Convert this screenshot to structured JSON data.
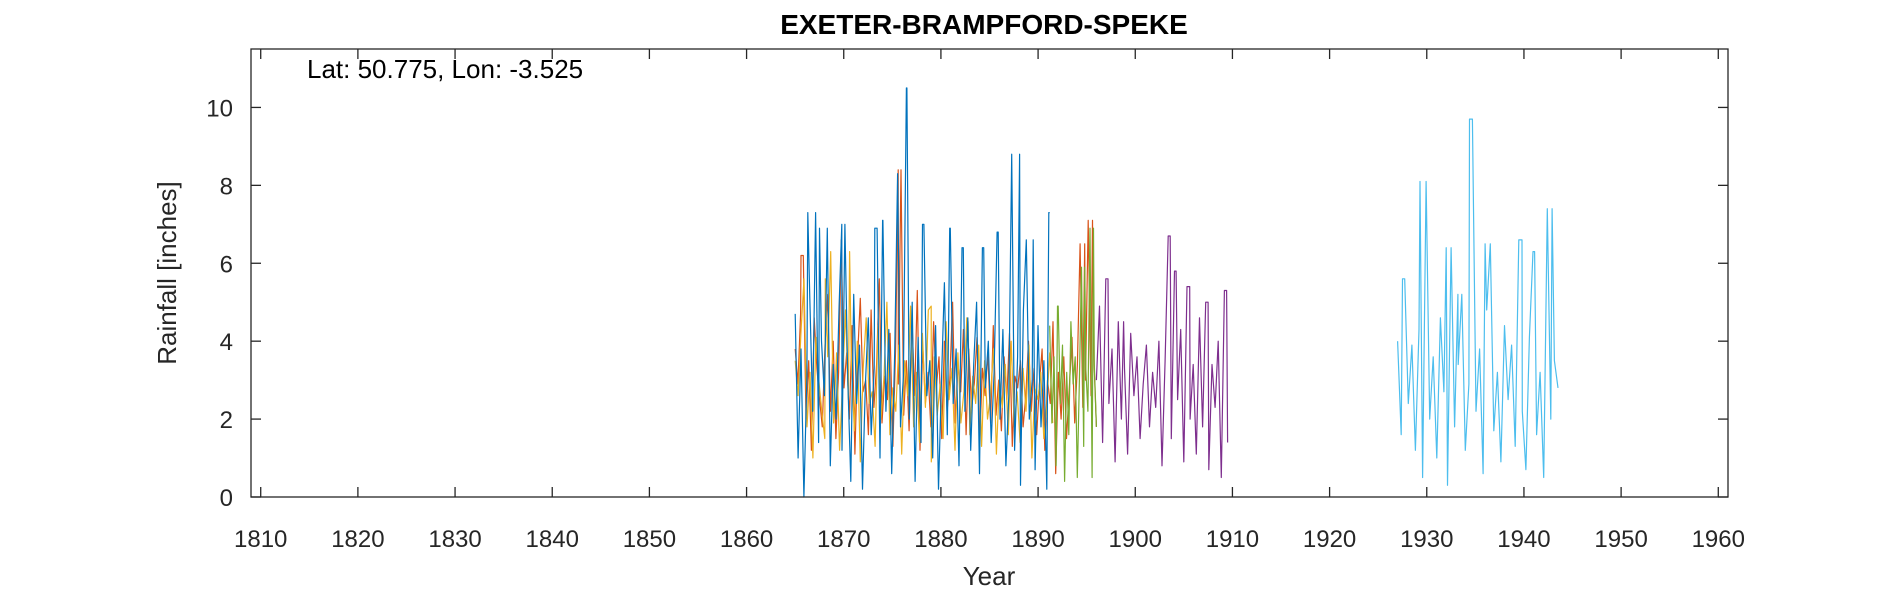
{
  "chart_data": {
    "type": "line",
    "title": "EXETER-BRAMPFORD-SPEKE",
    "xlabel": "Year",
    "ylabel": "Rainfall [inches]",
    "annotation": "Lat: 50.775, Lon: -3.525",
    "xlim": [
      1809,
      1961
    ],
    "ylim": [
      0,
      11.5
    ],
    "xticks": [
      1810,
      1820,
      1830,
      1840,
      1850,
      1860,
      1870,
      1880,
      1890,
      1900,
      1910,
      1920,
      1930,
      1940,
      1950,
      1960
    ],
    "yticks": [
      0,
      2,
      4,
      6,
      8,
      10
    ],
    "grid": false,
    "legend": "none",
    "series": [
      {
        "color": "#d95319",
        "x_start": 1865.0,
        "x_end": 1896.0,
        "peaks": [
          [
            1865.6,
            6.2
          ],
          [
            1875.6,
            8.4
          ],
          [
            1894.8,
            6.5
          ],
          [
            1895.6,
            7.1
          ]
        ],
        "y": [
          3.8,
          2.9,
          4.7,
          6.2,
          2.0,
          3.5,
          1.2,
          4.6,
          3.3,
          2.5,
          1.8,
          3.9,
          5.2,
          2.2,
          4.0,
          1.5,
          3.2,
          6.6,
          2.8,
          3.7,
          2.0,
          4.4,
          1.1,
          3.6,
          5.1,
          2.7,
          3.0,
          1.6,
          4.8,
          2.3,
          3.4,
          5.6,
          1.9,
          3.1,
          2.5,
          4.2,
          1.3,
          3.8,
          2.9,
          8.4,
          2.1,
          3.5,
          1.7,
          4.6,
          2.6,
          5.3,
          1.2,
          3.9,
          2.4,
          3.2,
          1.8,
          4.5,
          2.8,
          3.6,
          1.5,
          4.0,
          2.2,
          3.0,
          5.0,
          1.9,
          3.4,
          2.7,
          4.3,
          1.6,
          3.8,
          2.3,
          2.9,
          4.1,
          1.4,
          3.3,
          2.6,
          3.7,
          1.9,
          4.4,
          2.1,
          3.0,
          1.7,
          3.6,
          2.5,
          4.2,
          1.3,
          3.1,
          2.8,
          3.5,
          1.8,
          2.6,
          4.0,
          2.2,
          3.3,
          1.6,
          2.9,
          3.8,
          1.2,
          3.0,
          2.4,
          4.5,
          0.6,
          3.2,
          2.0,
          3.6,
          1.5,
          2.8,
          4.1,
          1.9,
          3.4,
          6.5,
          2.3,
          3.0,
          7.1,
          2.6,
          3.7,
          1.8
        ]
      },
      {
        "color": "#edb120",
        "x_start": 1865.0,
        "x_end": 1891.5,
        "peaks": [
          [
            1868.1,
            5.6
          ],
          [
            1870.6,
            6.3
          ],
          [
            1879.0,
            4.9
          ],
          [
            1882.8,
            4.5
          ]
        ],
        "y": [
          3.5,
          2.6,
          4.3,
          5.6,
          1.8,
          3.2,
          1.0,
          4.1,
          3.0,
          2.2,
          1.5,
          3.6,
          6.3,
          1.9,
          3.7,
          1.2,
          2.9,
          4.8,
          2.5,
          3.4,
          1.7,
          4.0,
          0.9,
          3.3,
          4.6,
          2.4,
          2.7,
          1.3,
          4.4,
          2.0,
          3.1,
          5.0,
          1.6,
          2.8,
          2.2,
          3.9,
          1.1,
          3.5,
          2.6,
          4.9,
          1.8,
          3.2,
          1.4,
          4.2,
          2.3,
          4.8,
          0.9,
          3.6,
          2.1,
          2.9,
          1.5,
          4.5,
          2.5,
          3.3,
          1.2,
          3.7,
          1.9,
          2.7,
          4.6,
          1.6,
          3.1,
          2.4,
          3.9,
          1.3,
          3.5,
          2.0,
          2.6,
          3.8,
          1.1,
          3.0,
          2.3,
          3.4,
          1.6,
          4.0,
          1.8,
          2.7,
          1.4,
          3.3,
          2.2,
          3.9,
          1.0,
          2.8,
          2.5,
          3.2,
          1.5,
          2.3,
          3.7,
          1.9
        ]
      },
      {
        "color": "#0072bd",
        "x_start": 1865.0,
        "x_end": 1891.2,
        "peaks": [
          [
            1866.3,
            7.3
          ],
          [
            1867.5,
            6.9
          ],
          [
            1869.8,
            7.0
          ],
          [
            1873.2,
            6.9
          ],
          [
            1874.0,
            7.1
          ],
          [
            1876.5,
            10.5
          ],
          [
            1878.1,
            7.0
          ],
          [
            1880.9,
            6.9
          ],
          [
            1882.3,
            6.4
          ],
          [
            1884.4,
            6.4
          ],
          [
            1885.9,
            6.8
          ],
          [
            1888.1,
            8.8
          ],
          [
            1889.5,
            6.6
          ],
          [
            1891.1,
            7.3
          ]
        ],
        "y": [
          4.7,
          1.0,
          3.8,
          0.0,
          3.1,
          5.1,
          2.2,
          7.3,
          1.4,
          4.0,
          2.6,
          6.9,
          0.8,
          3.4,
          2.0,
          4.9,
          1.2,
          7.0,
          3.0,
          0.4,
          5.2,
          2.4,
          3.9,
          0.2,
          2.9,
          4.6,
          1.6,
          3.3,
          6.9,
          1.0,
          7.1,
          2.2,
          4.3,
          0.6,
          3.7,
          8.3,
          1.8,
          3.1,
          10.5,
          2.0,
          5.0,
          0.4,
          4.1,
          1.4,
          7.0,
          2.6,
          3.5,
          1.0,
          4.4,
          0.2,
          3.0,
          5.5,
          1.6,
          6.9,
          2.4,
          3.8,
          0.8,
          6.4,
          2.2,
          4.6,
          1.2,
          3.4,
          5.0,
          0.6,
          6.4,
          2.8,
          4.0,
          1.4,
          3.2,
          6.8,
          2.0,
          4.3,
          0.8,
          2.6,
          8.8,
          1.2,
          3.6,
          0.3,
          4.8,
          6.6,
          2.0,
          3.0,
          0.7,
          4.4,
          1.8,
          3.5,
          0.2,
          7.3
        ]
      },
      {
        "color": "#77ac30",
        "x_start": 1891.2,
        "x_end": 1896.0,
        "peaks": [
          [
            1892.0,
            4.9
          ],
          [
            1894.8,
            5.9
          ],
          [
            1895.7,
            6.9
          ]
        ],
        "y": [
          4.4,
          1.9,
          3.6,
          0.8,
          4.9,
          2.4,
          3.9,
          0.4,
          3.2,
          1.6,
          4.5,
          2.9,
          3.6,
          0.5,
          3.0,
          5.9,
          1.3,
          3.3,
          2.2,
          6.9,
          0.5,
          3.4,
          1.8
        ]
      },
      {
        "color": "#7e2f8e",
        "x_start": 1896.0,
        "x_end": 1909.5,
        "peaks": [
          [
            1897.2,
            5.6
          ],
          [
            1898.8,
            4.5
          ],
          [
            1903.6,
            6.7
          ],
          [
            1904.2,
            5.8
          ],
          [
            1905.6,
            5.4
          ],
          [
            1907.5,
            5.0
          ],
          [
            1909.4,
            5.3
          ]
        ],
        "y": [
          3.0,
          4.9,
          1.4,
          5.6,
          2.4,
          3.8,
          0.9,
          4.5,
          2.0,
          3.3,
          1.1,
          4.2,
          2.6,
          3.6,
          1.5,
          2.9,
          3.9,
          1.8,
          3.2,
          2.3,
          4.0,
          0.8,
          3.5,
          6.7,
          1.5,
          5.8,
          2.5,
          4.3,
          0.9,
          5.4,
          2.0,
          3.4,
          1.1,
          4.6,
          1.8,
          5.0,
          0.7,
          3.4,
          2.3,
          4.0,
          0.5,
          5.3,
          1.4
        ]
      },
      {
        "color": "#4dbeee",
        "x_start": 1927.0,
        "x_end": 1943.5,
        "peaks": [
          [
            1927.5,
            5.6
          ],
          [
            1929.3,
            8.1
          ],
          [
            1932.0,
            6.4
          ],
          [
            1933.2,
            5.2
          ],
          [
            1934.4,
            9.7
          ],
          [
            1936.0,
            6.5
          ],
          [
            1939.8,
            6.6
          ],
          [
            1941.1,
            6.3
          ],
          [
            1942.9,
            7.4
          ]
        ],
        "y": [
          4.0,
          1.6,
          5.6,
          2.4,
          3.9,
          1.2,
          4.3,
          0.5,
          8.1,
          2.0,
          3.6,
          1.0,
          4.6,
          2.7,
          0.3,
          6.4,
          1.8,
          3.4,
          5.2,
          1.2,
          2.9,
          9.7,
          2.2,
          3.8,
          0.6,
          4.8,
          6.5,
          1.7,
          3.2,
          0.9,
          4.4,
          2.5,
          3.9,
          1.3,
          6.6,
          2.2,
          0.7,
          4.1,
          6.3,
          1.6,
          3.2,
          0.5,
          7.4,
          2.0,
          3.5,
          2.8
        ]
      }
    ]
  }
}
